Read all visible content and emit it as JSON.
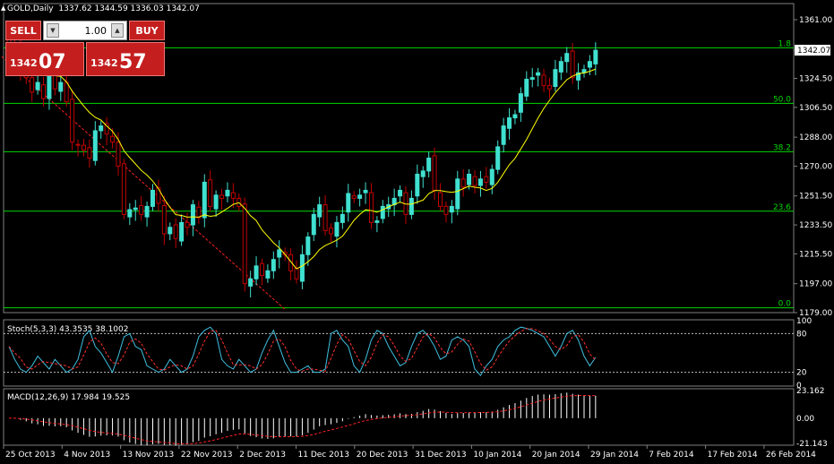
{
  "window": {
    "symbol_title": "GOLD,Daily",
    "ohlc": "1337.62 1344.59 1336.03 1342.07"
  },
  "trade_panel": {
    "sell_label": "SELL",
    "buy_label": "BUY",
    "lot": "1.00",
    "sell_price_small": "1342",
    "sell_price_big": "07",
    "buy_price_small": "1342",
    "buy_price_big": "57"
  },
  "colors": {
    "bull": "#40e0d0",
    "bear": "#c00000",
    "ma": "#ffff00",
    "fib": "#00d800",
    "trend": "#ff2020",
    "stoch_main": "#40c0e0",
    "stoch_signal": "#ff3030",
    "macd_hist": "#ffffff",
    "macd_signal": "#ff2020",
    "grid": "#808080"
  },
  "chart_data": [
    {
      "type": "candlestick",
      "title": "GOLD,Daily",
      "ylim": [
        1179,
        1371
      ],
      "y_ticks": [
        "1361.00",
        "1342.07",
        "1324.50",
        "1306.50",
        "1288.00",
        "1270.00",
        "1251.50",
        "1233.50",
        "1215.50",
        "1197.00",
        "1179.00"
      ],
      "x_ticks": [
        "25 Oct 2013",
        "4 Nov 2013",
        "13 Nov 2013",
        "22 Nov 2013",
        "2 Dec 2013",
        "11 Dec 2013",
        "20 Dec 2013",
        "31 Dec 2013",
        "10 Jan 2014",
        "20 Jan 2014",
        "29 Jan 2014",
        "7 Feb 2014",
        "17 Feb 2014",
        "26 Feb 2014"
      ],
      "current_price": 1342.07,
      "fib_levels": [
        {
          "label": "1.8",
          "value": 1343.5
        },
        {
          "label": "50.0",
          "value": 1309
        },
        {
          "label": "38.2",
          "value": 1279
        },
        {
          "label": "23.6",
          "value": 1242
        },
        {
          "label": "0.0",
          "value": 1182
        }
      ],
      "closes": [
        1345,
        1342,
        1330,
        1325,
        1316,
        1322,
        1312,
        1326,
        1318,
        1322,
        1310,
        1285,
        1283,
        1280,
        1275,
        1292,
        1295,
        1290,
        1285,
        1270,
        1240,
        1243,
        1244,
        1240,
        1245,
        1255,
        1247,
        1228,
        1232,
        1225,
        1235,
        1232,
        1246,
        1238,
        1260,
        1245,
        1252,
        1250,
        1255,
        1250,
        1245,
        1197,
        1200,
        1208,
        1202,
        1205,
        1212,
        1218,
        1215,
        1205,
        1200,
        1215,
        1226,
        1240,
        1246,
        1230,
        1228,
        1235,
        1240,
        1253,
        1250,
        1252,
        1255,
        1235,
        1236,
        1245,
        1246,
        1250,
        1255,
        1240,
        1250,
        1265,
        1267,
        1275,
        1255,
        1245,
        1240,
        1245,
        1262,
        1257,
        1265,
        1258,
        1262,
        1260,
        1268,
        1282,
        1295,
        1300,
        1302,
        1315,
        1324,
        1325,
        1328,
        1320,
        1318,
        1330,
        1335,
        1340,
        1325,
        1328,
        1330,
        1335,
        1342
      ]
    },
    {
      "type": "line",
      "title": "Stoch(5,3,3) 43.3535 38.1002",
      "ylim": [
        0,
        100
      ],
      "y_ticks": [
        "100",
        "80",
        "20",
        "0"
      ],
      "levels": [
        80,
        20
      ],
      "main": [
        60,
        40,
        25,
        20,
        30,
        45,
        35,
        25,
        40,
        30,
        20,
        25,
        40,
        75,
        85,
        60,
        50,
        35,
        20,
        45,
        75,
        80,
        60,
        55,
        30,
        25,
        20,
        25,
        40,
        30,
        20,
        25,
        45,
        75,
        85,
        90,
        80,
        40,
        30,
        25,
        40,
        30,
        20,
        25,
        50,
        70,
        85,
        60,
        35,
        20,
        20,
        25,
        30,
        20,
        20,
        25,
        80,
        85,
        70,
        60,
        30,
        20,
        40,
        70,
        85,
        80,
        60,
        45,
        30,
        35,
        60,
        80,
        85,
        75,
        60,
        40,
        45,
        70,
        75,
        70,
        60,
        25,
        15,
        30,
        40,
        60,
        70,
        75,
        85,
        90,
        88,
        85,
        80,
        75,
        60,
        45,
        60,
        80,
        85,
        70,
        45,
        30,
        43
      ]
    },
    {
      "type": "bar",
      "title": "MACD(12,26,9) 17.984 19.525",
      "ylim": [
        -21.143,
        23.162
      ],
      "y_ticks": [
        "23.162",
        "0.00",
        "-21.143"
      ]
    }
  ]
}
